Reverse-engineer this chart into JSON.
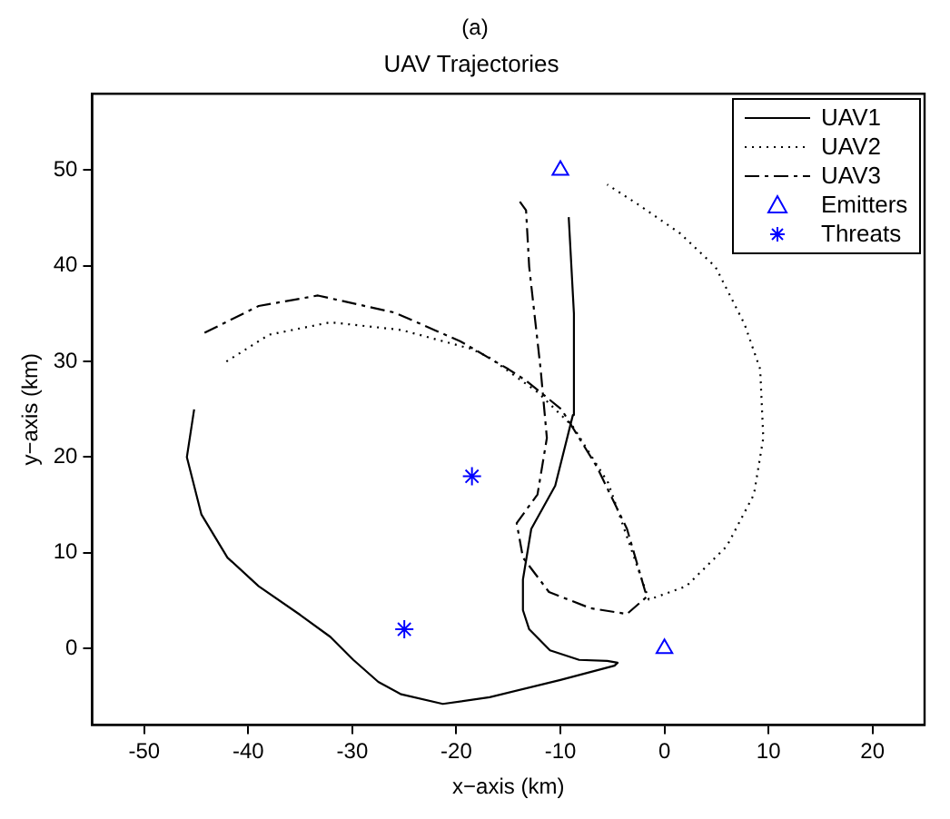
{
  "chart_data": {
    "type": "line",
    "title": "UAV Trajectories",
    "xlabel": "x−axis (km)",
    "ylabel": "y−axis (km)",
    "annotations": [
      "(a)"
    ],
    "xlim": [
      -55,
      25
    ],
    "xticks": [
      -50,
      -40,
      -30,
      -20,
      -10,
      0,
      10,
      20
    ],
    "ylim": [
      -8,
      58
    ],
    "yticks": [
      0,
      10,
      20,
      30,
      40,
      50
    ],
    "grid": false,
    "legend": "top right",
    "series": [
      {
        "name": "UAV1",
        "line_style": "solid",
        "color": "#000000",
        "x": [
          -45.2,
          -45.9,
          -44.5,
          -42,
          -39,
          -35,
          -32.1,
          -29.9,
          -27.5,
          -25.3,
          -21.3,
          -16.8,
          -10,
          -4.8,
          -4.5,
          -5.5,
          -8.2,
          -11,
          -13,
          -13.6,
          -13.6,
          -12.8,
          -10.5,
          -8.8,
          -8.7,
          -9.2
        ],
        "values": [
          25,
          20,
          14,
          9.5,
          6.5,
          3.5,
          1.2,
          -1.2,
          -3.5,
          -4.8,
          -5.8,
          -5.1,
          -3.3,
          -1.8,
          -1.5,
          -1.3,
          -1.2,
          -0.2,
          2,
          4,
          7.2,
          12.5,
          17,
          24.4,
          35,
          45.1
        ]
      },
      {
        "name": "UAV2",
        "line_style": "dotted",
        "color": "#000000",
        "x": [
          -42.1,
          -38,
          -32.1,
          -25.3,
          -18.5,
          -16.8,
          -12.2,
          -8.8,
          -5.4,
          -3.1,
          -1.5,
          2.1,
          6,
          8.6,
          9.5,
          9.2,
          7.7,
          4.9,
          1.5,
          -2.5,
          -5.5
        ],
        "values": [
          30,
          32.8,
          34.1,
          33.3,
          31.3,
          30.4,
          26.8,
          23.2,
          17.3,
          10.1,
          5.1,
          6.5,
          10.7,
          16.1,
          22,
          29.2,
          33.9,
          39.9,
          43.4,
          46.4,
          48.5
        ]
      },
      {
        "name": "UAV3",
        "line_style": "dashed",
        "color": "#000000",
        "x": [
          -44.2,
          -39,
          -33.3,
          -25.9,
          -19.6,
          -15,
          -13.3,
          -9.9,
          -6.5,
          -3.6,
          -1.7,
          -3.6,
          -7.1,
          -11.1,
          -13.6,
          -14.2,
          -12.2,
          -11.3,
          -11.9,
          -13,
          -13.3,
          -13.9
        ],
        "values": [
          33,
          35.8,
          36.9,
          35.1,
          32.1,
          29.2,
          28,
          25,
          19,
          12.5,
          5.4,
          3.6,
          4.2,
          5.9,
          9.5,
          13.1,
          16.1,
          22,
          29.2,
          39.9,
          45.8,
          46.7
        ]
      },
      {
        "name": "Emitters",
        "type": "scatter",
        "marker": "triangle",
        "color": "#0000ff",
        "x": [
          -10,
          0
        ],
        "values": [
          50,
          0
        ]
      },
      {
        "name": "Threats",
        "type": "scatter",
        "marker": "cross",
        "color": "#0000ff",
        "x": [
          -18.5,
          -25
        ],
        "values": [
          18,
          2
        ]
      }
    ]
  }
}
